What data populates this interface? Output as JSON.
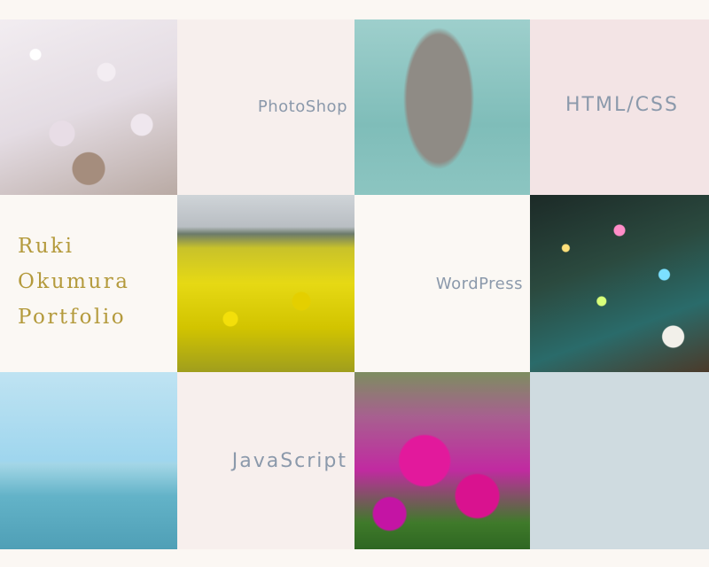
{
  "title": {
    "line1": "Ruki",
    "line2": "Okumura",
    "line3": "Portfolio"
  },
  "skills": {
    "photoshop": "PhotoShop",
    "htmlcss": "HTML/CSS",
    "wordpress": "WordPress",
    "javascript": "JavaScript"
  },
  "colors": {
    "title": "#b49a3c",
    "skill_text": "#8b99ab",
    "bg": "#fbf7f3",
    "pink_light": "#f7efed",
    "pink_mid": "#f3e4e5",
    "slate": "#cfdbe0"
  }
}
